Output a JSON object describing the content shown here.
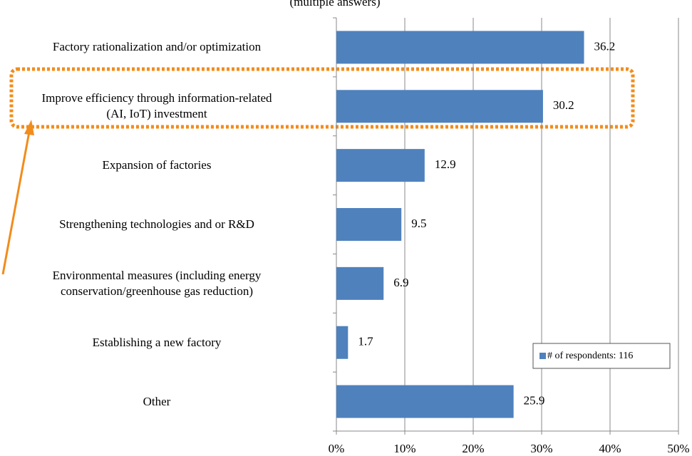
{
  "chart_data": {
    "type": "bar",
    "orientation": "horizontal",
    "subtitle": "(multiple answers)",
    "categories": [
      "Factory rationalization and/or optimization",
      "Improve efficiency through information-related\n(AI, IoT) investment",
      "Expansion of factories",
      "Strengthening technologies and or R&D",
      "Environmental measures (including energy\nconservation/greenhouse gas reduction)",
      "Establishing a new factory",
      "Other"
    ],
    "series": [
      {
        "name": "# of respondents: 116",
        "color": "#4f81bd",
        "values": [
          36.2,
          30.2,
          12.9,
          9.5,
          6.9,
          1.7,
          25.9
        ]
      }
    ],
    "xlim": [
      0,
      50
    ],
    "xticks": [
      {
        "value": 0,
        "label": "0%"
      },
      {
        "value": 10,
        "label": "10%"
      },
      {
        "value": 20,
        "label": "20%"
      },
      {
        "value": 30,
        "label": "30%"
      },
      {
        "value": 40,
        "label": "40%"
      },
      {
        "value": 50,
        "label": "50%"
      }
    ],
    "grid": true,
    "legend": "lower right"
  }
}
